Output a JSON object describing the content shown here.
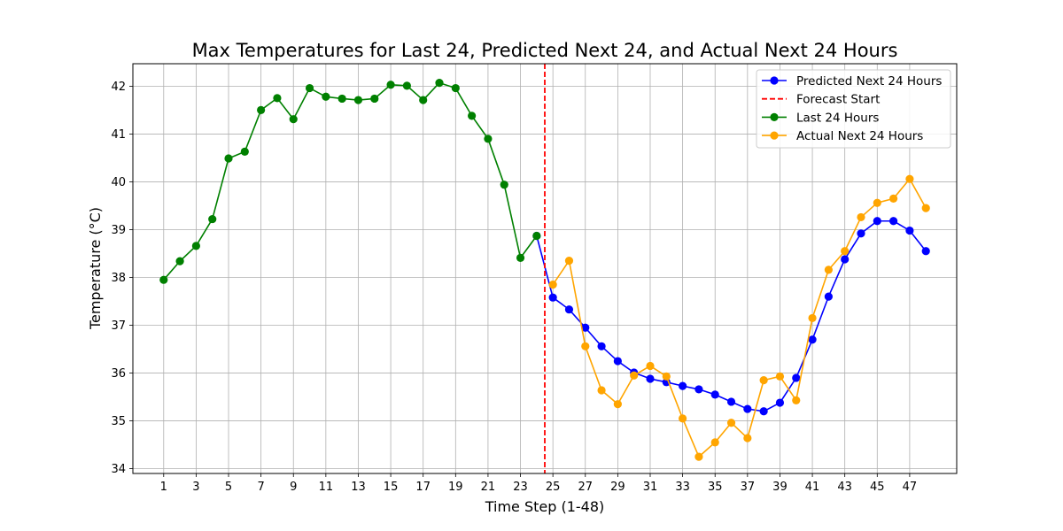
{
  "chart_data": {
    "type": "line",
    "title": "Max Temperatures for Last 24, Predicted Next 24, and Actual Next 24 Hours",
    "xlabel": "Time Step (1-48)",
    "ylabel": "Temperature (°C)",
    "xlim": [
      -0.9,
      49.9
    ],
    "ylim": [
      33.9,
      42.47
    ],
    "xticks": [
      1,
      3,
      5,
      7,
      9,
      11,
      13,
      15,
      17,
      19,
      21,
      23,
      25,
      27,
      29,
      31,
      33,
      35,
      37,
      39,
      41,
      43,
      45,
      47
    ],
    "yticks": [
      34,
      35,
      36,
      37,
      38,
      39,
      40,
      41,
      42
    ],
    "grid": true,
    "legend_position": "top-right",
    "forecast_start": 24.5,
    "series": [
      {
        "name": "Predicted Next 24 Hours",
        "color": "#0000ff",
        "x": [
          24,
          25,
          26,
          27,
          28,
          29,
          30,
          31,
          32,
          33,
          34,
          35,
          36,
          37,
          38,
          39,
          40,
          41,
          42,
          43,
          44,
          45,
          46,
          47,
          48
        ],
        "values": [
          38.87,
          37.58,
          37.33,
          36.95,
          36.56,
          36.25,
          36.01,
          35.88,
          35.81,
          35.73,
          35.66,
          35.55,
          35.4,
          35.25,
          35.2,
          35.38,
          35.9,
          36.7,
          37.6,
          38.38,
          38.92,
          39.18,
          39.18,
          38.98,
          38.55
        ]
      },
      {
        "name": "Forecast Start",
        "color": "#ff0000",
        "dashed": true
      },
      {
        "name": "Last 24 Hours",
        "color": "#008000",
        "x": [
          1,
          2,
          3,
          4,
          5,
          6,
          7,
          8,
          9,
          10,
          11,
          12,
          13,
          14,
          15,
          16,
          17,
          18,
          19,
          20,
          21,
          22,
          23,
          24
        ],
        "values": [
          37.95,
          38.34,
          38.66,
          39.22,
          40.49,
          40.63,
          41.5,
          41.75,
          41.31,
          41.96,
          41.78,
          41.74,
          41.71,
          41.74,
          42.03,
          42.01,
          41.71,
          42.07,
          41.96,
          41.38,
          40.9,
          39.94,
          38.41,
          38.87
        ]
      },
      {
        "name": "Actual Next 24 Hours",
        "color": "#ffa500",
        "x": [
          25,
          26,
          27,
          28,
          29,
          30,
          31,
          32,
          33,
          34,
          35,
          36,
          37,
          38,
          39,
          40,
          41,
          42,
          43,
          44,
          45,
          46,
          47,
          48
        ],
        "values": [
          37.85,
          38.35,
          36.56,
          35.64,
          35.35,
          35.95,
          36.15,
          35.93,
          35.05,
          34.25,
          34.55,
          34.96,
          34.64,
          35.85,
          35.93,
          35.43,
          37.15,
          38.16,
          38.55,
          39.26,
          39.56,
          39.65,
          40.06,
          39.45
        ]
      }
    ]
  }
}
